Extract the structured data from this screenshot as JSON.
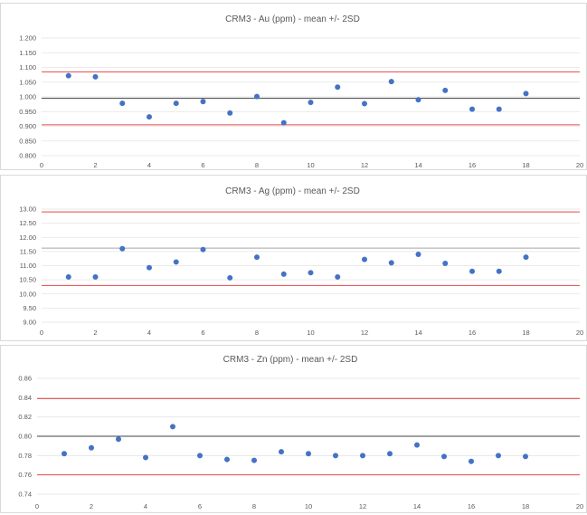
{
  "chart_data": [
    {
      "type": "scatter",
      "title": "CRM3 - Au (ppm) - mean +/- 2SD",
      "x_ticks": [
        "0",
        "2",
        "4",
        "6",
        "8",
        "10",
        "12",
        "14",
        "16",
        "18",
        "20"
      ],
      "xlim": [
        0,
        20
      ],
      "ylim": [
        0.8,
        1.2
      ],
      "y_ticks": [
        "0.800",
        "0.850",
        "0.900",
        "0.950",
        "1.000",
        "1.050",
        "1.100",
        "1.150",
        "1.200"
      ],
      "y_tick_values": [
        0.8,
        0.85,
        0.9,
        0.95,
        1.0,
        1.05,
        1.1,
        1.15,
        1.2
      ],
      "grid": true,
      "x": [
        1,
        2,
        3,
        4,
        5,
        6,
        7,
        8,
        9,
        10,
        11,
        12,
        13,
        14,
        15,
        16,
        17,
        18
      ],
      "values": [
        1.072,
        1.068,
        0.978,
        0.932,
        0.978,
        0.984,
        0.945,
        1.001,
        0.912,
        0.981,
        1.033,
        0.977,
        1.052,
        0.99,
        1.022,
        0.958,
        0.958,
        1.011
      ],
      "mean": 0.995,
      "lower_2sd": 0.905,
      "upper_2sd": 1.085,
      "colors": {
        "points": "#4472c4",
        "mean": "#404040",
        "limits": "#e8474a"
      }
    },
    {
      "type": "scatter",
      "title": "CRM3 - Ag (ppm) - mean +/- 2SD",
      "x_ticks": [
        "0",
        "2",
        "4",
        "6",
        "8",
        "10",
        "12",
        "14",
        "16",
        "18",
        "20"
      ],
      "xlim": [
        0,
        20
      ],
      "ylim": [
        9.0,
        13.0
      ],
      "y_ticks": [
        "9.00",
        "9.50",
        "10.00",
        "10.50",
        "11.00",
        "11.50",
        "12.00",
        "12.50",
        "13.00"
      ],
      "y_tick_values": [
        9.0,
        9.5,
        10.0,
        10.5,
        11.0,
        11.5,
        12.0,
        12.5,
        13.0
      ],
      "grid": true,
      "x": [
        1,
        2,
        3,
        4,
        5,
        6,
        7,
        8,
        9,
        10,
        11,
        12,
        13,
        14,
        15,
        16,
        17,
        18
      ],
      "values": [
        10.6,
        10.6,
        11.6,
        10.93,
        11.13,
        11.57,
        10.57,
        11.3,
        10.7,
        10.75,
        10.6,
        11.22,
        11.1,
        11.4,
        11.08,
        10.8,
        10.8,
        11.3
      ],
      "mean": 11.62,
      "lower_2sd": 10.3,
      "upper_2sd": 12.9,
      "colors": {
        "points": "#4472c4",
        "mean": "#a6a6a6",
        "limits": "#e8474a"
      }
    },
    {
      "type": "scatter",
      "title": "CRM3 - Zn (ppm) - mean +/- 2SD",
      "x_ticks": [
        "0",
        "2",
        "4",
        "6",
        "8",
        "10",
        "12",
        "14",
        "16",
        "18",
        "20"
      ],
      "xlim": [
        0,
        20
      ],
      "ylim": [
        0.74,
        0.86
      ],
      "y_ticks": [
        "0.74",
        "0.76",
        "0.78",
        "0.80",
        "0.82",
        "0.84",
        "0.86"
      ],
      "y_tick_values": [
        0.74,
        0.76,
        0.78,
        0.8,
        0.82,
        0.84,
        0.86
      ],
      "grid": true,
      "x": [
        1,
        2,
        3,
        4,
        5,
        6,
        7,
        8,
        9,
        10,
        11,
        12,
        13,
        14,
        15,
        16,
        17,
        18
      ],
      "values": [
        0.782,
        0.788,
        0.797,
        0.778,
        0.81,
        0.78,
        0.776,
        0.775,
        0.784,
        0.782,
        0.78,
        0.78,
        0.782,
        0.791,
        0.779,
        0.774,
        0.78,
        0.779
      ],
      "mean": 0.8,
      "lower_2sd": 0.76,
      "upper_2sd": 0.839,
      "colors": {
        "points": "#4472c4",
        "mean": "#404040",
        "limits": "#e8474a"
      }
    }
  ]
}
